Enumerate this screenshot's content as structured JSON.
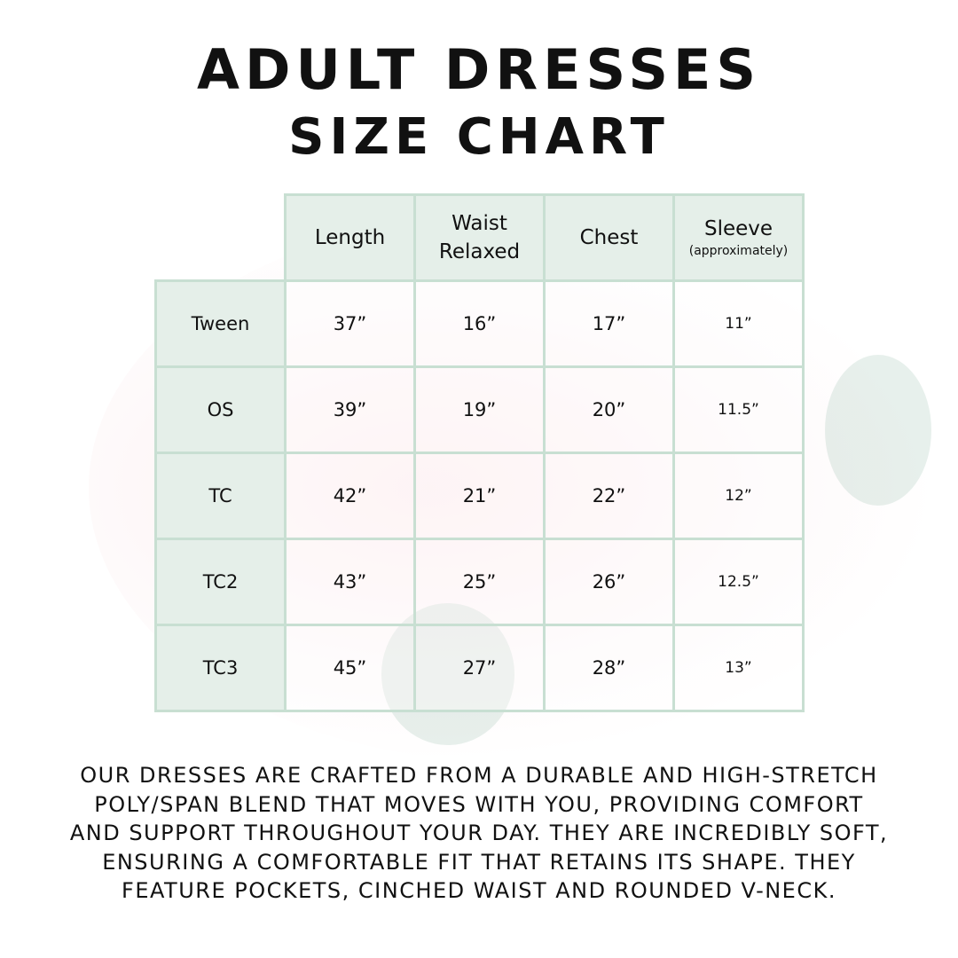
{
  "title": {
    "line1": "ADULT DRESSES",
    "line2": "SIZE CHART"
  },
  "table": {
    "columns": [
      {
        "label": "Length",
        "sub": ""
      },
      {
        "label": "Waist",
        "sub": "Relaxed"
      },
      {
        "label": "Chest",
        "sub": ""
      },
      {
        "label": "Sleeve",
        "sub": "(approximately)"
      }
    ],
    "rows": [
      {
        "size": "Tween",
        "values": [
          "37”",
          "16”",
          "17”",
          "11”"
        ]
      },
      {
        "size": "OS",
        "values": [
          "39”",
          "19”",
          "20”",
          "11.5”"
        ]
      },
      {
        "size": "TC",
        "values": [
          "42”",
          "21”",
          "22”",
          "12”"
        ]
      },
      {
        "size": "TC2",
        "values": [
          "43”",
          "25”",
          "26”",
          "12.5”"
        ]
      },
      {
        "size": "TC3",
        "values": [
          "45”",
          "27”",
          "28”",
          "13”"
        ]
      }
    ]
  },
  "description": [
    "Our dresses are crafted from a durable and high-stretch",
    "poly/span blend that moves with you, providing comfort",
    "and support throughout your day. They are incredibly soft,",
    "ensuring a comfortable fit that retains its shape. They",
    "feature pockets, cinched waist and rounded V-neck."
  ],
  "colors": {
    "border": "#c8dfd2",
    "header_fill": "#e5efe9",
    "text": "#111111"
  }
}
